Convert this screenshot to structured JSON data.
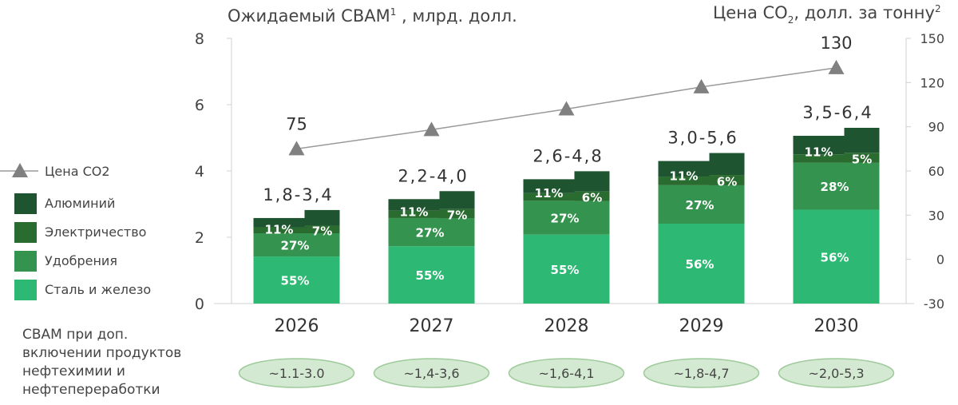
{
  "title_left": "Ожидаемый CBAM",
  "title_left_sup": "1",
  "title_left_suffix": " , млрд. долл.",
  "title_right": "Цена CO",
  "title_right_sub": "2",
  "title_right_suffix": ", долл. за тонну",
  "title_right_sup": "2",
  "note_lines": [
    "CBAM при доп.",
    "включении продуктов",
    "нефтехимии и",
    "нефтепереработки"
  ],
  "colors": {
    "steel": "#2db973",
    "fertilizer": "#34944f",
    "electricity": "#2a6b30",
    "aluminium": "#1e5430",
    "line": "#999999",
    "marker": "#808080",
    "pill_fill": "#d4e9d2",
    "pill_stroke": "#9fcb9c"
  },
  "chart_data": {
    "type": "bar",
    "stacked": true,
    "categories": [
      "2026",
      "2027",
      "2028",
      "2029",
      "2030"
    ],
    "ylim": [
      0,
      8
    ],
    "yticks": [
      0,
      2,
      4,
      6,
      8
    ],
    "y2lim": [
      -30,
      150
    ],
    "y2ticks": [
      -30,
      0,
      30,
      60,
      90,
      120,
      150
    ],
    "series": [
      {
        "name": "Сталь и железо",
        "key": "steel",
        "values": [
          1.42,
          1.73,
          2.08,
          2.41,
          2.83
        ],
        "labels": [
          "55%",
          "55%",
          "55%",
          "56%",
          "56%"
        ]
      },
      {
        "name": "Удобрения",
        "key": "fertilizer",
        "values": [
          0.7,
          0.85,
          1.02,
          1.16,
          1.42
        ],
        "labels": [
          "27%",
          "27%",
          "27%",
          "27%",
          "28%"
        ]
      },
      {
        "name": "Электричество",
        "key": "electricity",
        "values": [
          0.18,
          0.22,
          0.23,
          0.26,
          0.25
        ],
        "labels": [
          "7%",
          "7%",
          "6%",
          "6%",
          "5%"
        ]
      },
      {
        "name": "Алюминий",
        "key": "aluminium",
        "values": [
          0.28,
          0.35,
          0.42,
          0.47,
          0.56
        ],
        "labels": [
          "11%",
          "11%",
          "11%",
          "11%",
          "11%"
        ]
      }
    ],
    "range_labels": [
      "1,8-3,4",
      "2,2-4,0",
      "2,6-4,8",
      "3,0-5,6",
      "3,5-6,4"
    ],
    "line": {
      "name": "Цена CO2",
      "values": [
        75,
        88,
        102,
        117,
        130
      ],
      "point_labels": [
        "75",
        "",
        "",
        "",
        "130"
      ]
    },
    "extended_ranges": [
      "~1.1-3.0",
      "~1,4-3,6",
      "~1,6-4,1",
      "~1,8-4,7",
      "~2,0-5,3"
    ]
  }
}
